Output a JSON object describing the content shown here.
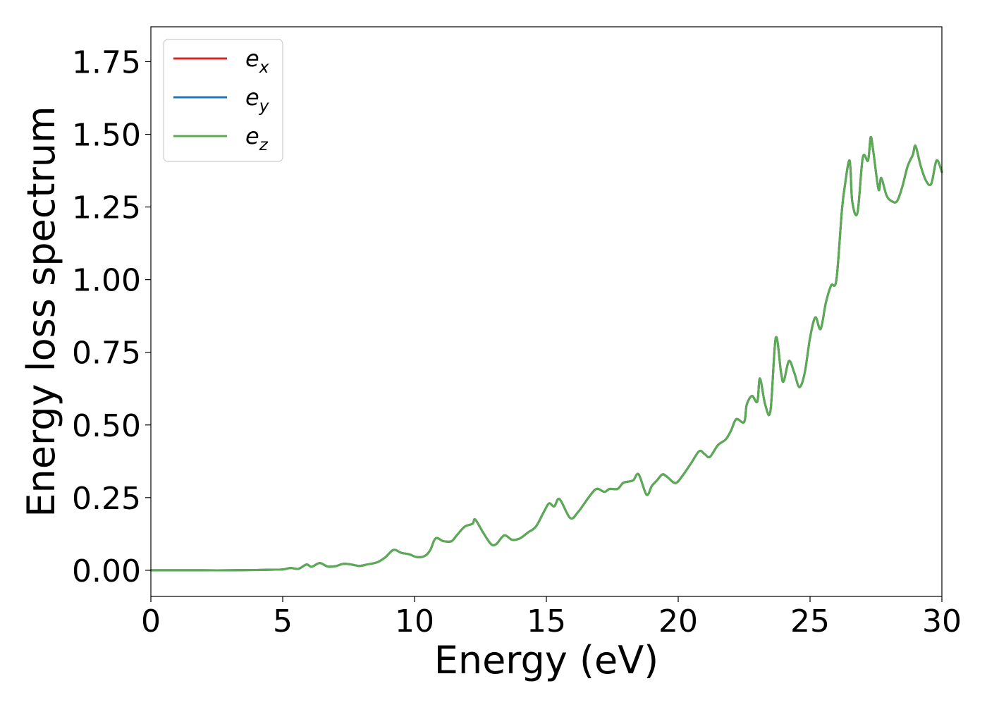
{
  "chart_data": {
    "type": "line",
    "xlabel": "Energy (eV)",
    "ylabel": "Energy loss spectrum",
    "xlim": [
      0,
      30
    ],
    "ylim": [
      -0.09,
      1.87
    ],
    "xticks": [
      0,
      5,
      10,
      15,
      20,
      25,
      30
    ],
    "xtick_labels": [
      "0",
      "5",
      "10",
      "15",
      "20",
      "25",
      "30"
    ],
    "yticks": [
      0.0,
      0.25,
      0.5,
      0.75,
      1.0,
      1.25,
      1.5,
      1.75
    ],
    "ytick_labels": [
      "0.00",
      "0.25",
      "0.50",
      "0.75",
      "1.00",
      "1.25",
      "1.50",
      "1.75"
    ],
    "grid": false,
    "legend_position": "top-left",
    "legend": [
      {
        "base": "e",
        "sub": "x",
        "color": "#d62728"
      },
      {
        "base": "e",
        "sub": "y",
        "color": "#1f77b4"
      },
      {
        "base": "e",
        "sub": "z",
        "color": "#5aab52"
      }
    ],
    "x": [
      0,
      1,
      2,
      3,
      4,
      4.5,
      5,
      5.3,
      5.6,
      5.9,
      6.1,
      6.4,
      6.7,
      7.0,
      7.3,
      7.6,
      7.9,
      8.2,
      8.6,
      8.9,
      9.2,
      9.5,
      9.8,
      10.1,
      10.4,
      10.6,
      10.8,
      11.1,
      11.4,
      11.6,
      11.9,
      12.2,
      12.3,
      12.6,
      12.9,
      13.1,
      13.4,
      13.7,
      14.0,
      14.3,
      14.6,
      14.9,
      15.1,
      15.3,
      15.5,
      15.9,
      16.2,
      16.6,
      16.9,
      17.2,
      17.4,
      17.7,
      17.9,
      18.1,
      18.3,
      18.5,
      18.8,
      19.0,
      19.2,
      19.4,
      19.6,
      19.9,
      20.2,
      20.5,
      20.8,
      21.0,
      21.2,
      21.5,
      21.8,
      22.0,
      22.2,
      22.5,
      22.6,
      22.8,
      23.0,
      23.1,
      23.3,
      23.5,
      23.7,
      23.9,
      24.0,
      24.2,
      24.4,
      24.6,
      24.8,
      25.0,
      25.2,
      25.4,
      25.6,
      25.8,
      26.0,
      26.2,
      26.3,
      26.5,
      26.6,
      26.8,
      27.0,
      27.2,
      27.3,
      27.4,
      27.6,
      27.7,
      27.9,
      28.1,
      28.3,
      28.5,
      28.7,
      28.9,
      29.0,
      29.2,
      29.4,
      29.6,
      29.8,
      30.0
    ],
    "series": [
      {
        "name": "e_x",
        "color": "#d62728",
        "values": [
          0,
          0,
          0,
          0,
          0.001,
          0.002,
          0.003,
          0.008,
          0.005,
          0.02,
          0.012,
          0.025,
          0.013,
          0.014,
          0.022,
          0.02,
          0.015,
          0.02,
          0.028,
          0.045,
          0.07,
          0.06,
          0.055,
          0.045,
          0.05,
          0.07,
          0.11,
          0.1,
          0.1,
          0.12,
          0.15,
          0.16,
          0.175,
          0.13,
          0.09,
          0.09,
          0.12,
          0.105,
          0.11,
          0.13,
          0.15,
          0.2,
          0.23,
          0.22,
          0.245,
          0.18,
          0.2,
          0.25,
          0.28,
          0.27,
          0.28,
          0.28,
          0.3,
          0.305,
          0.31,
          0.33,
          0.26,
          0.29,
          0.31,
          0.33,
          0.32,
          0.3,
          0.33,
          0.37,
          0.41,
          0.4,
          0.39,
          0.43,
          0.45,
          0.48,
          0.52,
          0.51,
          0.57,
          0.6,
          0.58,
          0.66,
          0.57,
          0.55,
          0.8,
          0.68,
          0.65,
          0.72,
          0.68,
          0.63,
          0.68,
          0.8,
          0.87,
          0.83,
          0.92,
          0.98,
          1.0,
          1.23,
          1.31,
          1.41,
          1.27,
          1.23,
          1.42,
          1.41,
          1.49,
          1.44,
          1.31,
          1.35,
          1.29,
          1.27,
          1.27,
          1.32,
          1.39,
          1.43,
          1.46,
          1.39,
          1.34,
          1.33,
          1.41,
          1.37
        ]
      },
      {
        "name": "e_y",
        "color": "#1f77b4",
        "values": [
          0,
          0,
          0,
          0,
          0.001,
          0.002,
          0.003,
          0.008,
          0.005,
          0.02,
          0.012,
          0.025,
          0.013,
          0.014,
          0.022,
          0.02,
          0.015,
          0.02,
          0.028,
          0.045,
          0.07,
          0.06,
          0.055,
          0.045,
          0.05,
          0.07,
          0.11,
          0.1,
          0.1,
          0.12,
          0.15,
          0.16,
          0.175,
          0.13,
          0.09,
          0.09,
          0.12,
          0.105,
          0.11,
          0.13,
          0.15,
          0.2,
          0.23,
          0.22,
          0.245,
          0.18,
          0.2,
          0.25,
          0.28,
          0.27,
          0.28,
          0.28,
          0.3,
          0.305,
          0.31,
          0.33,
          0.26,
          0.29,
          0.31,
          0.33,
          0.32,
          0.3,
          0.33,
          0.37,
          0.41,
          0.4,
          0.39,
          0.43,
          0.45,
          0.48,
          0.52,
          0.51,
          0.57,
          0.6,
          0.58,
          0.66,
          0.57,
          0.55,
          0.8,
          0.68,
          0.65,
          0.72,
          0.68,
          0.63,
          0.68,
          0.8,
          0.87,
          0.83,
          0.92,
          0.98,
          1.0,
          1.23,
          1.31,
          1.41,
          1.27,
          1.23,
          1.42,
          1.41,
          1.49,
          1.44,
          1.31,
          1.35,
          1.29,
          1.27,
          1.27,
          1.32,
          1.39,
          1.43,
          1.46,
          1.39,
          1.34,
          1.33,
          1.41,
          1.37
        ]
      },
      {
        "name": "e_z",
        "color": "#5aab52",
        "values": [
          0,
          0,
          0,
          0,
          0.001,
          0.002,
          0.003,
          0.008,
          0.005,
          0.02,
          0.012,
          0.025,
          0.013,
          0.014,
          0.022,
          0.02,
          0.015,
          0.02,
          0.028,
          0.045,
          0.07,
          0.06,
          0.055,
          0.045,
          0.05,
          0.07,
          0.11,
          0.1,
          0.1,
          0.12,
          0.15,
          0.16,
          0.175,
          0.13,
          0.09,
          0.09,
          0.12,
          0.105,
          0.11,
          0.13,
          0.15,
          0.2,
          0.23,
          0.22,
          0.245,
          0.18,
          0.2,
          0.25,
          0.28,
          0.27,
          0.28,
          0.28,
          0.3,
          0.305,
          0.31,
          0.33,
          0.26,
          0.29,
          0.31,
          0.33,
          0.32,
          0.3,
          0.33,
          0.37,
          0.41,
          0.4,
          0.39,
          0.43,
          0.45,
          0.48,
          0.52,
          0.51,
          0.57,
          0.6,
          0.58,
          0.66,
          0.57,
          0.55,
          0.8,
          0.68,
          0.65,
          0.72,
          0.68,
          0.63,
          0.68,
          0.8,
          0.87,
          0.83,
          0.92,
          0.98,
          1.0,
          1.23,
          1.31,
          1.41,
          1.27,
          1.23,
          1.42,
          1.41,
          1.49,
          1.44,
          1.31,
          1.35,
          1.29,
          1.27,
          1.27,
          1.32,
          1.39,
          1.43,
          1.46,
          1.39,
          1.34,
          1.33,
          1.41,
          1.37
        ]
      }
    ]
  }
}
